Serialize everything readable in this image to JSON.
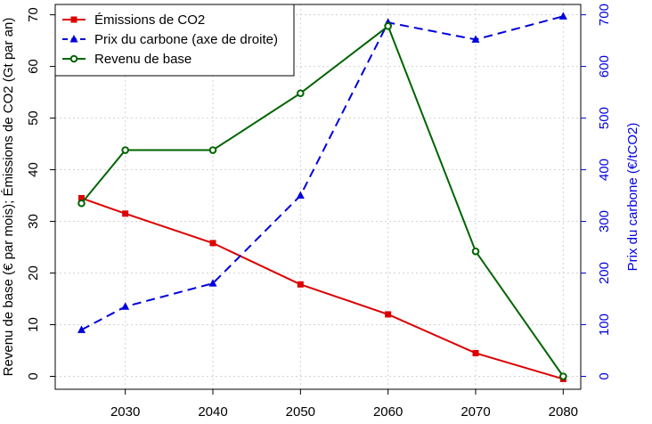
{
  "chart_data": {
    "type": "line",
    "title": "",
    "x": [
      2025,
      2030,
      2040,
      2050,
      2060,
      2070,
      2080
    ],
    "x_ticks": [
      2030,
      2040,
      2050,
      2060,
      2070,
      2080
    ],
    "xlim": [
      2022,
      2082
    ],
    "ylabel": "Revenu de base (€ par mois); Émissions de CO2 (Gt par an)",
    "ylim": [
      -2.5,
      72
    ],
    "y_ticks": [
      0,
      10,
      20,
      30,
      40,
      50,
      60,
      70
    ],
    "y2label": "Prix du carbone (€/tCO2)",
    "y2lim": [
      -25,
      720
    ],
    "y2_ticks": [
      0,
      100,
      200,
      300,
      400,
      500,
      600,
      700
    ],
    "grid": true,
    "legend_position": "top-left",
    "series": [
      {
        "name": "Émissions de CO2",
        "axis": "left",
        "color": "#dd0000",
        "marker": "square",
        "line_style": "solid",
        "values": [
          34.5,
          31.5,
          25.8,
          17.8,
          12.0,
          4.5,
          -0.5
        ]
      },
      {
        "name": "Prix du carbone (axe de droite)",
        "axis": "right",
        "color": "#0000dd",
        "marker": "triangle",
        "line_style": "dashed",
        "values": [
          90,
          135,
          180,
          350,
          685,
          652,
          697
        ]
      },
      {
        "name": "Revenu de base",
        "axis": "left",
        "color": "#006400",
        "marker": "circle",
        "line_style": "solid",
        "values": [
          33.5,
          43.8,
          43.8,
          54.8,
          67.8,
          24.2,
          0.0
        ]
      }
    ]
  }
}
